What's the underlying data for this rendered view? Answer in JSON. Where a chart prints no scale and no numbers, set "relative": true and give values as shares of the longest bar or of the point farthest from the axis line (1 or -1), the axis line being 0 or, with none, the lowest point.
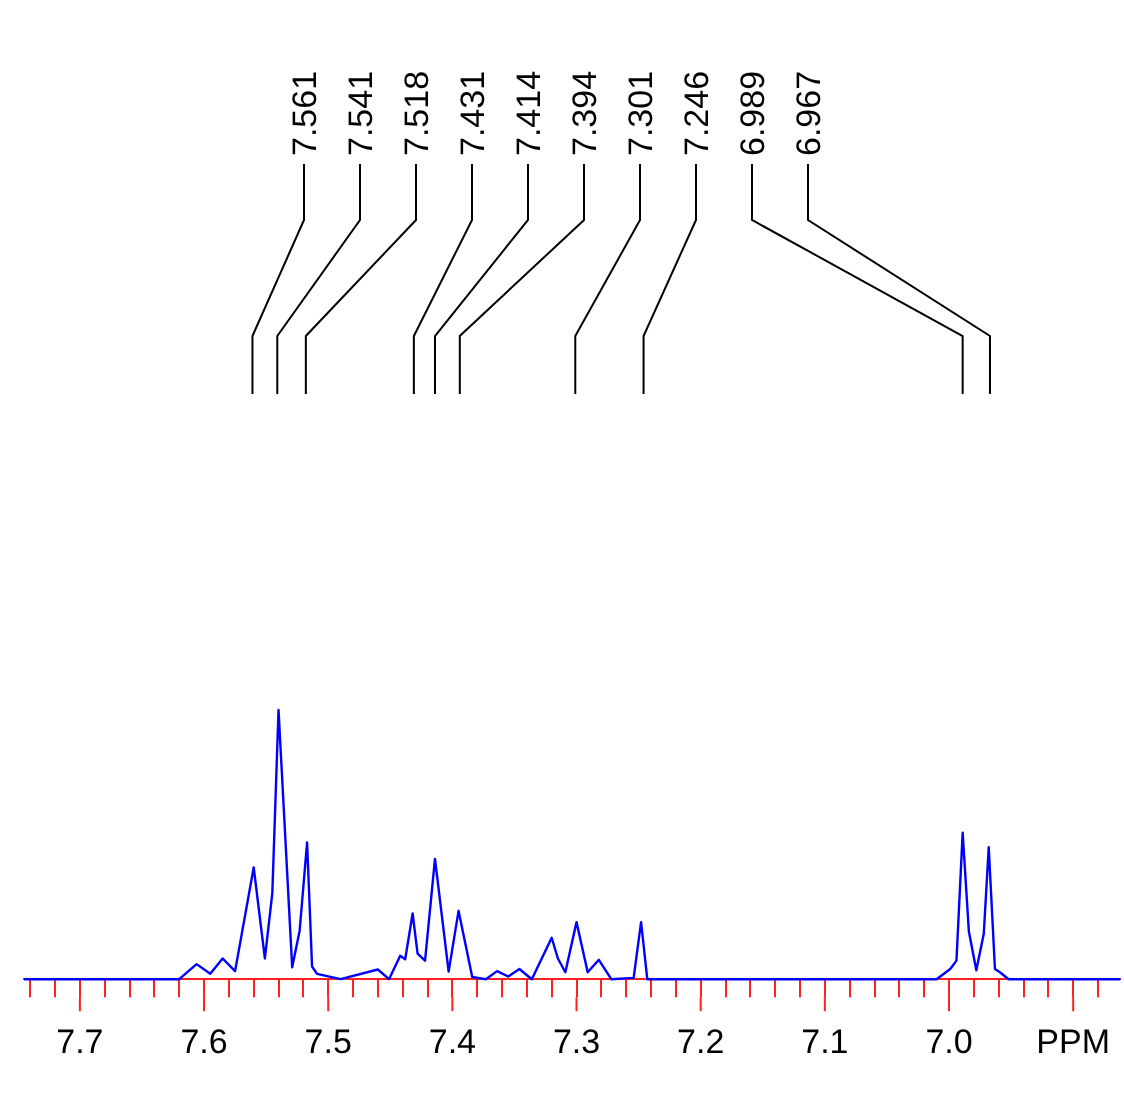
{
  "chart_data": {
    "type": "line",
    "relative": true,
    "marker": "none",
    "legend": false,
    "grid": false,
    "tick_labels": "x",
    "xlim": [
      7.745,
      6.862
    ],
    "xticks": [
      {
        "value": 7.74,
        "label": null
      },
      {
        "value": 7.72,
        "label": null
      },
      7.7,
      {
        "value": 7.68,
        "label": null
      },
      {
        "value": 7.66,
        "label": null
      },
      {
        "value": 7.64,
        "label": null
      },
      {
        "value": 7.62,
        "label": null
      },
      7.6,
      {
        "value": 7.58,
        "label": null
      },
      {
        "value": 7.56,
        "label": null
      },
      {
        "value": 7.54,
        "label": null
      },
      {
        "value": 7.52,
        "label": null
      },
      7.5,
      {
        "value": 7.48,
        "label": null
      },
      {
        "value": 7.46,
        "label": null
      },
      {
        "value": 7.44,
        "label": null
      },
      {
        "value": 7.42,
        "label": null
      },
      7.4,
      {
        "value": 7.38,
        "label": null
      },
      {
        "value": 7.36,
        "label": null
      },
      {
        "value": 7.34,
        "label": null
      },
      {
        "value": 7.32,
        "label": null
      },
      7.3,
      {
        "value": 7.28,
        "label": null
      },
      {
        "value": 7.26,
        "label": null
      },
      {
        "value": 7.24,
        "label": null
      },
      {
        "value": 7.22,
        "label": null
      },
      7.2,
      {
        "value": 7.18,
        "label": null
      },
      {
        "value": 7.16,
        "label": null
      },
      {
        "value": 7.14,
        "label": null
      },
      {
        "value": 7.12,
        "label": null
      },
      7.1,
      {
        "value": 7.08,
        "label": null
      },
      {
        "value": 7.06,
        "label": null
      },
      {
        "value": 7.04,
        "label": null
      },
      {
        "value": 7.02,
        "label": null
      },
      {
        "value": 7,
        "label": "7.0"
      },
      {
        "value": 6.98,
        "label": null
      },
      {
        "value": 6.96,
        "label": null
      },
      {
        "value": 6.94,
        "label": null
      },
      {
        "value": 6.92,
        "label": null
      },
      {
        "value": 6.9,
        "label": "PPM"
      },
      {
        "value": 6.88,
        "label": null
      }
    ],
    "series": [
      {
        "color": "#0000ff",
        "x": [
          7.745,
          7.62,
          7.606,
          7.595,
          7.585,
          7.575,
          7.56,
          7.551,
          7.545,
          7.54,
          7.529,
          7.523,
          7.517,
          7.513,
          7.509,
          7.49,
          7.46,
          7.451,
          7.442,
          7.438,
          7.432,
          7.428,
          7.422,
          7.414,
          7.403,
          7.395,
          7.384,
          7.373,
          7.364,
          7.355,
          7.346,
          7.336,
          7.32,
          7.315,
          7.309,
          7.3,
          7.291,
          7.282,
          7.272,
          7.254,
          7.248,
          7.243,
          7.01,
          6.999,
          6.994,
          6.989,
          6.984,
          6.978,
          6.972,
          6.968,
          6.963,
          6.959,
          6.952,
          6.862
        ],
        "values": [
          0,
          0,
          0.056,
          0.02,
          0.077,
          0.03,
          0.415,
          0.077,
          0.32,
          1.0,
          0.044,
          0.18,
          0.508,
          0.047,
          0.02,
          0,
          0.036,
          0,
          0.087,
          0.074,
          0.244,
          0.095,
          0.069,
          0.447,
          0.028,
          0.254,
          0.008,
          0,
          0.03,
          0.01,
          0.038,
          0,
          0.154,
          0.077,
          0.026,
          0.212,
          0.026,
          0.072,
          0,
          0.005,
          0.212,
          0,
          0,
          0.038,
          0.069,
          0.544,
          0.177,
          0.033,
          0.169,
          0.49,
          0.038,
          0.026,
          0,
          0
        ]
      }
    ],
    "annotations": [
      {
        "text": "7.561",
        "x": 7.561
      },
      {
        "text": "7.541",
        "x": 7.541
      },
      {
        "text": "7.518",
        "x": 7.518
      },
      {
        "text": "7.431",
        "x": 7.431
      },
      {
        "text": "7.414",
        "x": 7.414
      },
      {
        "text": "7.394",
        "x": 7.394
      },
      {
        "text": "7.301",
        "x": 7.301
      },
      {
        "text": "7.246",
        "x": 7.246
      },
      {
        "text": "6.989",
        "x": 6.989
      },
      {
        "text": "6.967",
        "x": 6.967
      }
    ]
  }
}
